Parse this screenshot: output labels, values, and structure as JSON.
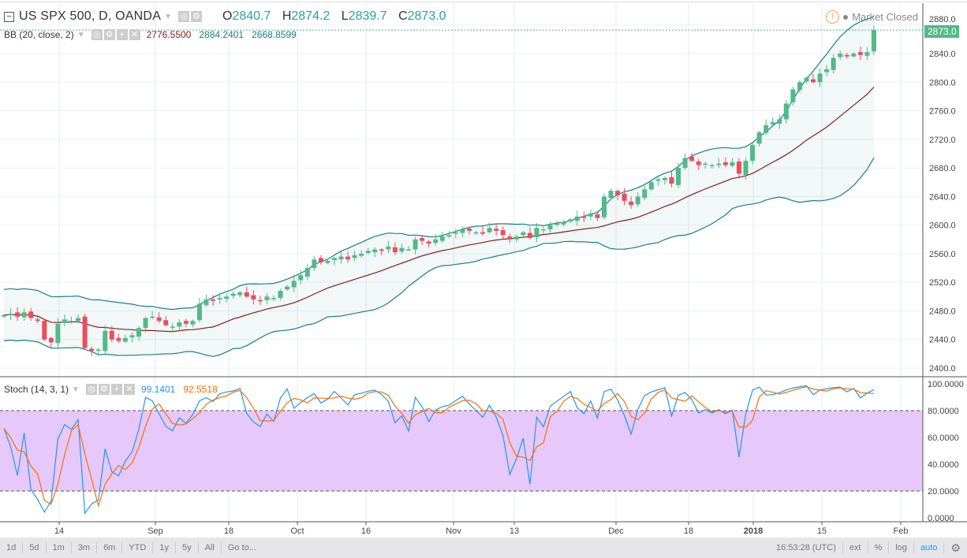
{
  "header": {
    "symbol": "US SPX 500, D, OANDA",
    "open_label": "O",
    "open": "2840.7",
    "high_label": "H",
    "high": "2874.2",
    "low_label": "L",
    "low": "2839.7",
    "close_label": "C",
    "close": "2873.0",
    "market_status": "Market Closed",
    "last_price": "2873.0"
  },
  "bb": {
    "label": "BB (20, close, 2)",
    "basis": "2776.5500",
    "upper": "2884.2401",
    "lower": "2668.8599"
  },
  "stoch": {
    "label": "Stoch (14, 3, 1)",
    "k": "99.1401",
    "d": "92.5518"
  },
  "price_axis": [
    "2400.0",
    "2440.0",
    "2480.0",
    "2520.0",
    "2560.0",
    "2600.0",
    "2640.0",
    "2680.0",
    "2720.0",
    "2760.0",
    "2800.0",
    "2840.0",
    "2880.0"
  ],
  "stoch_axis": [
    "0.0000",
    "20.0000",
    "40.0000",
    "60.0000",
    "80.0000",
    "100.0000"
  ],
  "time_axis": [
    "14",
    "Sep",
    "18",
    "Oct",
    "16",
    "Nov",
    "13",
    "Dec",
    "18",
    "2018",
    "15",
    "Feb"
  ],
  "toolbar": {
    "ranges": [
      "1d",
      "5d",
      "1m",
      "3m",
      "6m",
      "YTD",
      "1y",
      "5y",
      "All",
      "Go to..."
    ],
    "clock": "16:53:28 (UTC)",
    "ext": "ext",
    "pct": "%",
    "log": "log",
    "auto": "auto"
  },
  "colors": {
    "up": "#53b987",
    "down": "#eb4d5c",
    "bb_band": "#1b7f83",
    "bb_basis": "#8b1a1a",
    "k": "#2196f3",
    "d": "#ff6d00",
    "zone": "#e7c8fa"
  },
  "chart_data": {
    "type": "candlestick",
    "closes": [
      2474,
      2476,
      2472,
      2478,
      2470,
      2466,
      2440,
      2436,
      2462,
      2468,
      2466,
      2470,
      2428,
      2424,
      2426,
      2452,
      2440,
      2438,
      2442,
      2446,
      2456,
      2470,
      2472,
      2466,
      2460,
      2458,
      2464,
      2462,
      2466,
      2490,
      2496,
      2494,
      2498,
      2500,
      2504,
      2506,
      2500,
      2496,
      2494,
      2500,
      2498,
      2508,
      2514,
      2522,
      2530,
      2540,
      2552,
      2548,
      2550,
      2554,
      2556,
      2552,
      2558,
      2560,
      2564,
      2566,
      2564,
      2570,
      2562,
      2568,
      2566,
      2580,
      2578,
      2574,
      2580,
      2584,
      2586,
      2590,
      2594,
      2592,
      2590,
      2588,
      2596,
      2592,
      2586,
      2580,
      2584,
      2590,
      2582,
      2596,
      2594,
      2600,
      2602,
      2604,
      2608,
      2612,
      2610,
      2616,
      2610,
      2640,
      2648,
      2642,
      2634,
      2628,
      2640,
      2650,
      2660,
      2664,
      2666,
      2658,
      2680,
      2694,
      2690,
      2684,
      2686,
      2684,
      2686,
      2684,
      2688,
      2672,
      2690,
      2712,
      2730,
      2740,
      2744,
      2748,
      2770,
      2790,
      2800,
      2806,
      2800,
      2812,
      2818,
      2834,
      2840,
      2836,
      2840,
      2838,
      2842,
      2873
    ],
    "ylim": [
      2400,
      2880
    ]
  }
}
